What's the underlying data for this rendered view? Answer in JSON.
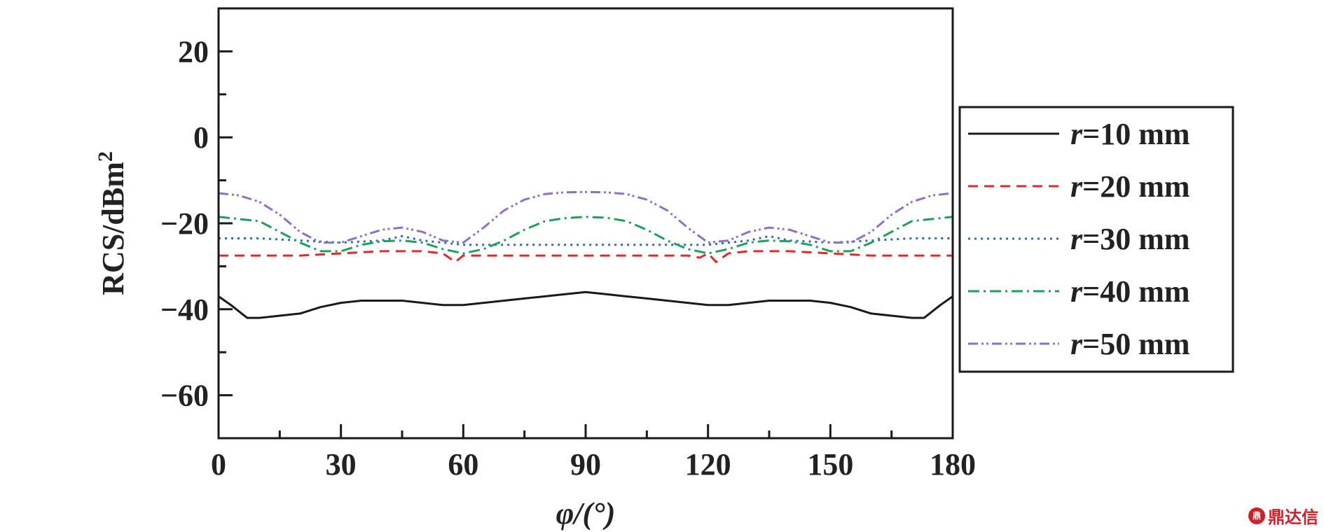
{
  "chart_data": {
    "type": "line",
    "xlabel": "φ/(°)",
    "ylabel": "RCS/dBm",
    "ylabel_sup": "2",
    "xlim": [
      0,
      180
    ],
    "ylim": [
      -70,
      30
    ],
    "x_ticks": [
      0,
      30,
      60,
      90,
      120,
      150,
      180
    ],
    "y_ticks": [
      20,
      0,
      -20,
      -40,
      -60
    ],
    "legend_position": "right-outside",
    "grid": false,
    "series": [
      {
        "name": "r=10 mm",
        "legend_var": "r",
        "legend_rest": "=10 mm",
        "color": "#1a1a1a",
        "dash": "",
        "x": [
          0,
          3,
          7,
          10,
          15,
          20,
          25,
          30,
          35,
          40,
          45,
          50,
          55,
          60,
          65,
          70,
          75,
          80,
          85,
          90,
          95,
          100,
          105,
          110,
          115,
          120,
          125,
          130,
          135,
          140,
          145,
          150,
          155,
          160,
          165,
          170,
          173,
          177,
          180
        ],
        "y": [
          -37,
          -39,
          -42,
          -42,
          -41.5,
          -41,
          -39.5,
          -38.5,
          -38,
          -38,
          -38,
          -38.5,
          -39,
          -39,
          -38.5,
          -38,
          -37.5,
          -37,
          -36.5,
          -36,
          -36.5,
          -37,
          -37.5,
          -38,
          -38.5,
          -39,
          -39,
          -38.5,
          -38,
          -38,
          -38,
          -38.5,
          -39.5,
          -41,
          -41.5,
          -42,
          -42,
          -39,
          -37
        ]
      },
      {
        "name": "r=20 mm",
        "legend_var": "r",
        "legend_rest": "=20 mm",
        "color": "#e02a2a",
        "dash": "14,9",
        "x": [
          0,
          10,
          20,
          30,
          40,
          50,
          55,
          58,
          60,
          65,
          70,
          80,
          90,
          100,
          110,
          115,
          118,
          120,
          122,
          125,
          130,
          140,
          150,
          160,
          170,
          180
        ],
        "y": [
          -27.5,
          -27.5,
          -27.5,
          -27,
          -26.5,
          -26.5,
          -27,
          -29,
          -27.5,
          -27.5,
          -27.5,
          -27.5,
          -27.5,
          -27.5,
          -27.5,
          -27.5,
          -28,
          -27,
          -29,
          -27,
          -26.5,
          -26.5,
          -27,
          -27.5,
          -27.5,
          -27.5
        ]
      },
      {
        "name": "r=30 mm",
        "legend_var": "r",
        "legend_rest": "=30 mm",
        "color": "#2a6db5",
        "dash": "3,6",
        "x": [
          0,
          10,
          20,
          30,
          40,
          45,
          50,
          60,
          70,
          80,
          90,
          100,
          110,
          120,
          130,
          135,
          140,
          150,
          160,
          170,
          180
        ],
        "y": [
          -23.5,
          -23.5,
          -24,
          -24.5,
          -24,
          -23,
          -24,
          -25,
          -25,
          -25,
          -25,
          -25,
          -25,
          -25,
          -24,
          -23,
          -24,
          -24.5,
          -24,
          -23.5,
          -23.5
        ]
      },
      {
        "name": "r=40 mm",
        "legend_var": "r",
        "legend_rest": "=40 mm",
        "color": "#1fa05a",
        "dash": "16,6,3,6",
        "x": [
          0,
          5,
          10,
          15,
          20,
          25,
          30,
          35,
          40,
          45,
          50,
          55,
          60,
          65,
          70,
          75,
          80,
          85,
          90,
          95,
          100,
          105,
          110,
          115,
          120,
          125,
          130,
          135,
          140,
          145,
          150,
          155,
          160,
          165,
          170,
          175,
          180
        ],
        "y": [
          -18.5,
          -19,
          -19.5,
          -22,
          -24.5,
          -26.5,
          -26.5,
          -25,
          -24.2,
          -24,
          -24.5,
          -26,
          -27,
          -26,
          -24,
          -21.5,
          -19.5,
          -18.8,
          -18.5,
          -18.7,
          -19.5,
          -21.5,
          -24,
          -26,
          -27,
          -26,
          -24.5,
          -24,
          -24.2,
          -25,
          -26.5,
          -26.5,
          -24.5,
          -22,
          -19.5,
          -19,
          -18.5
        ]
      },
      {
        "name": "r=50 mm",
        "legend_var": "r",
        "legend_rest": "=50 mm",
        "color": "#9070c0",
        "dash": "14,5,3,4,3,5",
        "x": [
          0,
          5,
          10,
          15,
          20,
          25,
          30,
          35,
          40,
          45,
          50,
          55,
          60,
          65,
          70,
          75,
          80,
          85,
          90,
          95,
          100,
          105,
          110,
          115,
          120,
          125,
          130,
          135,
          140,
          145,
          150,
          155,
          160,
          165,
          170,
          175,
          180
        ],
        "y": [
          -13,
          -13.5,
          -15,
          -18,
          -22,
          -24.5,
          -24.5,
          -23,
          -21.5,
          -21,
          -22,
          -24,
          -24.5,
          -21,
          -17,
          -14.5,
          -13.2,
          -12.8,
          -12.7,
          -12.8,
          -13.2,
          -14.5,
          -17,
          -21,
          -24.5,
          -24,
          -22,
          -21,
          -21.5,
          -23,
          -24.5,
          -24.5,
          -22,
          -18,
          -15,
          -13.5,
          -13
        ]
      }
    ]
  },
  "watermark": {
    "text": "鼎达信"
  }
}
